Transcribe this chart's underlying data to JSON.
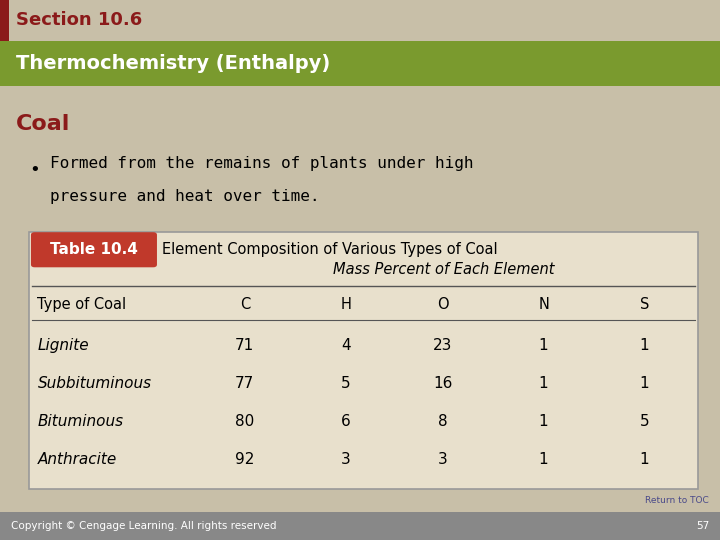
{
  "section_text": "Section 10.6",
  "section_bar_color": "#8B1A1A",
  "header_text": "Thermochemistry (Enthalpy)",
  "header_bg_color": "#7A9A2E",
  "header_text_color": "#FFFFFF",
  "coal_title": "Coal",
  "coal_title_color": "#8B1A1A",
  "bullet_text_line1": "Formed from the remains of plants under high",
  "bullet_text_line2": "pressure and heat over time.",
  "bg_color": "#C8BFA8",
  "table_label_bg": "#C0392B",
  "table_label_text": "Table 10.4",
  "table_label_text_color": "#FFFFFF",
  "table_title": "Element Composition of Various Types of Coal",
  "table_subtitle": "Mass Percent of Each Element",
  "table_bg": "#E8E0CC",
  "table_border_color": "#999999",
  "col_headers": [
    "Type of Coal",
    "C",
    "H",
    "O",
    "N",
    "S"
  ],
  "rows": [
    [
      "Lignite",
      "71",
      "4",
      "23",
      "1",
      "1"
    ],
    [
      "Subbituminous",
      "77",
      "5",
      "16",
      "1",
      "1"
    ],
    [
      "Bituminous",
      "80",
      "6",
      "8",
      "1",
      "5"
    ],
    [
      "Anthracite",
      "92",
      "3",
      "3",
      "1",
      "1"
    ]
  ],
  "footer_text": "Copyright © Cengage Learning. All rights reserved",
  "footer_page": "57",
  "footer_bg": "#888888",
  "footer_text_color": "#FFFFFF",
  "return_toc_text": "Return to TOC",
  "return_toc_color": "#4A4A8A"
}
